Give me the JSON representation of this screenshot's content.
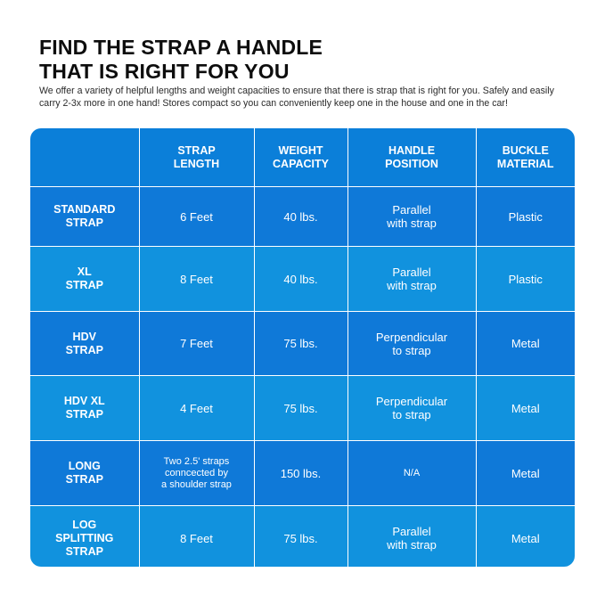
{
  "title": "FIND THE STRAP A HANDLE\nTHAT IS RIGHT FOR YOU",
  "subtitle": "We offer a variety of helpful lengths and weight capacities to ensure that there is strap that is right for you. Safely and easily carry 2-3x more in one hand! Stores compact so you can conveniently keep one in the house and one in the car!",
  "colors": {
    "header_blue": "#0b7fd9",
    "row_dark": "#0f79d8",
    "row_light": "#1192de"
  },
  "table": {
    "headers": [
      "",
      "STRAP\nLENGTH",
      "WEIGHT\nCAPACITY",
      "HANDLE\nPOSITION",
      "BUCKLE\nMATERIAL"
    ],
    "rows": [
      {
        "name": "STANDARD\nSTRAP",
        "length": "6 Feet",
        "capacity": "40 lbs.",
        "position": "Parallel\nwith strap",
        "material": "Plastic"
      },
      {
        "name": "XL\nSTRAP",
        "length": "8 Feet",
        "capacity": "40 lbs.",
        "position": "Parallel\nwith strap",
        "material": "Plastic"
      },
      {
        "name": "HDV\nSTRAP",
        "length": "7 Feet",
        "capacity": "75 lbs.",
        "position": "Perpendicular\nto strap",
        "material": "Metal"
      },
      {
        "name": "HDV XL\nSTRAP",
        "length": "4 Feet",
        "capacity": "75 lbs.",
        "position": "Perpendicular\nto strap",
        "material": "Metal"
      },
      {
        "name": "LONG\nSTRAP",
        "length": "Two 2.5' straps\nconncected by\na shoulder strap",
        "capacity": "150 lbs.",
        "position": "N/A",
        "material": "Metal"
      },
      {
        "name": "LOG\nSPLITTING\nSTRAP",
        "length": "8 Feet",
        "capacity": "75 lbs.",
        "position": "Parallel\nwith strap",
        "material": "Metal"
      }
    ]
  }
}
